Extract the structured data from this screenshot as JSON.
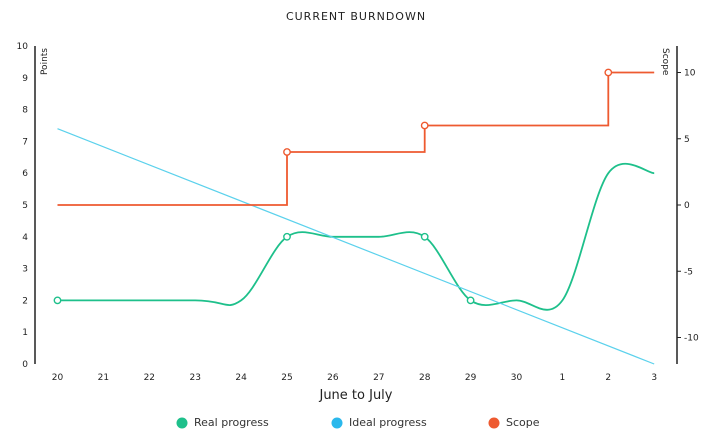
{
  "chart_data": {
    "type": "line",
    "title": "CURRENT BURNDOWN",
    "xlabel": "June to July",
    "ylabel_left": "Points",
    "ylabel_right": "Scope",
    "x_categories": [
      "20",
      "21",
      "22",
      "23",
      "24",
      "25",
      "26",
      "27",
      "28",
      "29",
      "30",
      "1",
      "2",
      "3"
    ],
    "ylim_left": [
      0,
      10
    ],
    "yticks_left": [
      "0",
      "1",
      "2",
      "3",
      "4",
      "5",
      "6",
      "7",
      "8",
      "9",
      "10"
    ],
    "ylim_right": [
      -12,
      12
    ],
    "yticks_right": [
      "-10",
      "-5",
      "0",
      "5",
      "10"
    ],
    "grid": false,
    "legend_position": "bottom",
    "series": [
      {
        "name": "Real progress",
        "axis": "left",
        "color": "#1ec08b",
        "style": "smooth",
        "points": [
          {
            "x": "20",
            "y": 2,
            "marker": true
          },
          {
            "x": "23",
            "y": 2
          },
          {
            "x": "24",
            "y": 2
          },
          {
            "x": "25",
            "y": 4,
            "marker": true
          },
          {
            "x": "26",
            "y": 4
          },
          {
            "x": "27",
            "y": 4
          },
          {
            "x": "28",
            "y": 4,
            "marker": true
          },
          {
            "x": "29",
            "y": 2,
            "marker": true
          },
          {
            "x": "30",
            "y": 2
          },
          {
            "x": "1",
            "y": 2
          },
          {
            "x": "2",
            "y": 6
          },
          {
            "x": "3",
            "y": 6
          }
        ]
      },
      {
        "name": "Ideal progress",
        "axis": "left",
        "color": "#5bd1ec",
        "style": "straight",
        "points": [
          {
            "x": "20",
            "y": 7.4
          },
          {
            "x": "3",
            "y": 0
          }
        ]
      },
      {
        "name": "Scope",
        "axis": "right",
        "color": "#ee5a30",
        "style": "step",
        "points": [
          {
            "x": "20",
            "y": 0
          },
          {
            "x": "25",
            "y": 0
          },
          {
            "x": "25",
            "y": 4,
            "marker": true
          },
          {
            "x": "28",
            "y": 4
          },
          {
            "x": "28",
            "y": 6,
            "marker": true
          },
          {
            "x": "2",
            "y": 6
          },
          {
            "x": "2",
            "y": 10,
            "marker": true
          },
          {
            "x": "3",
            "y": 10
          }
        ]
      }
    ],
    "legend": [
      {
        "label": "Real progress",
        "color": "#1ec08b"
      },
      {
        "label": "Ideal progress",
        "color": "#2bb8ec"
      },
      {
        "label": "Scope",
        "color": "#ee5a30"
      }
    ]
  }
}
